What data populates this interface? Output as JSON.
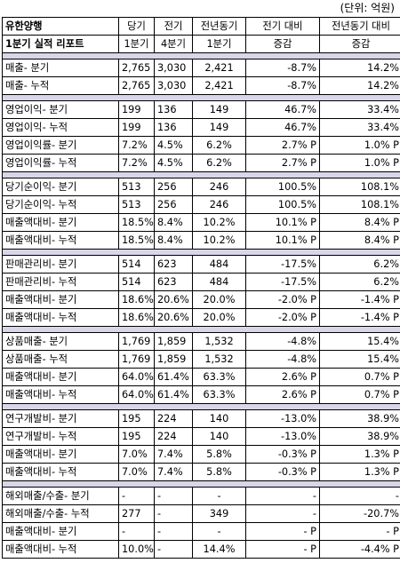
{
  "unit_label": "(단위: 억원)",
  "header": {
    "row1": [
      "유한양행",
      "당기",
      "전기",
      "전년동기",
      "전기 대비",
      "전년동기 대비"
    ],
    "row2": [
      "1분기 실적 리포트",
      "1분기",
      "4분기",
      "1분기",
      "증감",
      "증감"
    ]
  },
  "groups": [
    [
      [
        "매출- 분기",
        "2,765",
        "3,030",
        "2,421",
        "-8.7%",
        "14.2%"
      ],
      [
        "매출- 누적",
        "2,765",
        "3,030",
        "2,421",
        "-8.7%",
        "14.2%"
      ]
    ],
    [
      [
        "영업이익- 분기",
        "199",
        "136",
        "149",
        "46.7%",
        "33.4%"
      ],
      [
        "영업이익- 누적",
        "199",
        "136",
        "149",
        "46.7%",
        "33.4%"
      ],
      [
        "영업이익률- 분기",
        "7.2%",
        "4.5%",
        "6.2%",
        "2.7% P",
        "1.0% P"
      ],
      [
        "영업이익률- 누적",
        "7.2%",
        "4.5%",
        "6.2%",
        "2.7% P",
        "1.0% P"
      ]
    ],
    [
      [
        "당기순이익- 분기",
        "513",
        "256",
        "246",
        "100.5%",
        "108.1%"
      ],
      [
        "당기순이익- 누적",
        "513",
        "256",
        "246",
        "100.5%",
        "108.1%"
      ],
      [
        "매출액대비- 분기",
        "18.5%",
        "8.4%",
        "10.2%",
        "10.1% P",
        "8.4% P"
      ],
      [
        "매출액대비- 누적",
        "18.5%",
        "8.4%",
        "10.2%",
        "10.1% P",
        "8.4% P"
      ]
    ],
    [
      [
        "판매관리비- 분기",
        "514",
        "623",
        "484",
        "-17.5%",
        "6.2%"
      ],
      [
        "판매관리비- 누적",
        "514",
        "623",
        "484",
        "-17.5%",
        "6.2%"
      ],
      [
        "매출액대비- 분기",
        "18.6%",
        "20.6%",
        "20.0%",
        "-2.0% P",
        "-1.4% P"
      ],
      [
        "매출액대비- 누적",
        "18.6%",
        "20.6%",
        "20.0%",
        "-2.0% P",
        "-1.4% P"
      ]
    ],
    [
      [
        "상품매출- 분기",
        "1,769",
        "1,859",
        "1,532",
        "-4.8%",
        "15.4%"
      ],
      [
        "상품매출- 누적",
        "1,769",
        "1,859",
        "1,532",
        "-4.8%",
        "15.4%"
      ],
      [
        "매출액대비- 분기",
        "64.0%",
        "61.4%",
        "63.3%",
        "2.6% P",
        "0.7% P"
      ],
      [
        "매출액대비- 누적",
        "64.0%",
        "61.4%",
        "63.3%",
        "2.6% P",
        "0.7% P"
      ]
    ],
    [
      [
        "연구개발비- 분기",
        "195",
        "224",
        "140",
        "-13.0%",
        "38.9%"
      ],
      [
        "연구개발비- 누적",
        "195",
        "224",
        "140",
        "-13.0%",
        "38.9%"
      ],
      [
        "매출액대비- 분기",
        "7.0%",
        "7.4%",
        "5.8%",
        "-0.3% P",
        "1.3% P"
      ],
      [
        "매출액대비- 누적",
        "7.0%",
        "7.4%",
        "5.8%",
        "-0.3% P",
        "1.3% P"
      ]
    ],
    [
      [
        "해외매출/수출- 분기",
        "-",
        "-",
        "-",
        "-",
        "-"
      ],
      [
        "해외매출/수출- 누적",
        "277",
        "-",
        "349",
        "-",
        "-20.7%"
      ],
      [
        "매출액대비- 분기",
        "-",
        "-",
        "-",
        "- P",
        "- P"
      ],
      [
        "매출액대비- 누적",
        "10.0%",
        "-",
        "14.4%",
        "- P",
        "-4.4% P"
      ]
    ]
  ]
}
